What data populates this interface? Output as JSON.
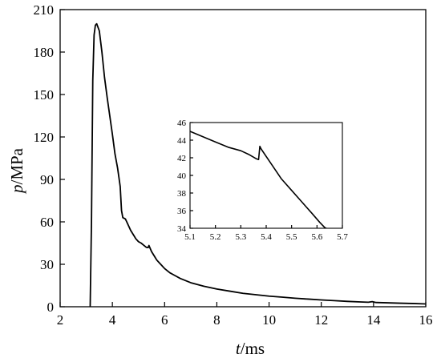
{
  "chart_data": [
    {
      "type": "line",
      "title": "",
      "xlabel_var": "t",
      "xlabel_unit": "/ms",
      "ylabel_var": "p",
      "ylabel_unit": "/MPa",
      "xlim": [
        2,
        16
      ],
      "ylim": [
        0,
        210
      ],
      "xticks": [
        2,
        4,
        6,
        8,
        10,
        12,
        14,
        16
      ],
      "yticks": [
        0,
        30,
        60,
        90,
        120,
        150,
        180,
        210
      ],
      "grid": false,
      "legend": "none",
      "series": [
        {
          "color": "#000000",
          "x": [
            3.15,
            3.2,
            3.25,
            3.3,
            3.35,
            3.4,
            3.5,
            3.6,
            3.7,
            3.8,
            3.9,
            4.0,
            4.1,
            4.2,
            4.3,
            4.35,
            4.4,
            4.5,
            4.6,
            4.7,
            4.8,
            4.9,
            5.0,
            5.1,
            5.2,
            5.3,
            5.37,
            5.4,
            5.5,
            5.6,
            5.7,
            5.8,
            5.9,
            6.0,
            6.2,
            6.4,
            6.6,
            6.8,
            7.0,
            7.5,
            8.0,
            8.5,
            9.0,
            9.5,
            10.0,
            10.5,
            11.0,
            11.5,
            12.0,
            12.5,
            13.0,
            13.5,
            13.8,
            13.95,
            14.1,
            14.5,
            15.0,
            15.5,
            16.0
          ],
          "y": [
            0,
            60,
            160,
            192,
            199,
            200,
            195,
            180,
            162,
            148,
            135,
            122,
            108,
            98,
            85,
            68,
            63,
            62,
            58,
            54,
            51,
            48,
            46,
            45,
            43.5,
            42,
            41.8,
            43.3,
            39,
            36,
            33,
            31,
            29,
            27,
            24,
            22,
            20,
            18.5,
            17,
            14.5,
            12.5,
            11,
            9.5,
            8.5,
            7.5,
            6.8,
            6,
            5.4,
            4.8,
            4.3,
            3.8,
            3.4,
            3.2,
            3.6,
            3.0,
            2.8,
            2.5,
            2.3,
            2.0
          ]
        }
      ]
    },
    {
      "type": "line",
      "title": "",
      "xlabel": "",
      "ylabel": "",
      "xlim": [
        5.1,
        5.7
      ],
      "ylim": [
        34,
        46
      ],
      "xticks": [
        5.1,
        5.2,
        5.3,
        5.4,
        5.5,
        5.6,
        5.7
      ],
      "yticks": [
        34,
        36,
        38,
        40,
        42,
        44,
        46
      ],
      "grid": false,
      "legend": "none",
      "series": [
        {
          "color": "#000000",
          "x": [
            5.1,
            5.15,
            5.2,
            5.25,
            5.3,
            5.33,
            5.36,
            5.37,
            5.375,
            5.38,
            5.42,
            5.46,
            5.5,
            5.54,
            5.58,
            5.61,
            5.63,
            5.65
          ],
          "y": [
            45.0,
            44.4,
            43.8,
            43.2,
            42.8,
            42.4,
            41.9,
            41.8,
            43.3,
            43.0,
            41.3,
            39.6,
            38.3,
            37.0,
            35.7,
            34.7,
            34.1,
            33.5
          ]
        }
      ]
    }
  ]
}
